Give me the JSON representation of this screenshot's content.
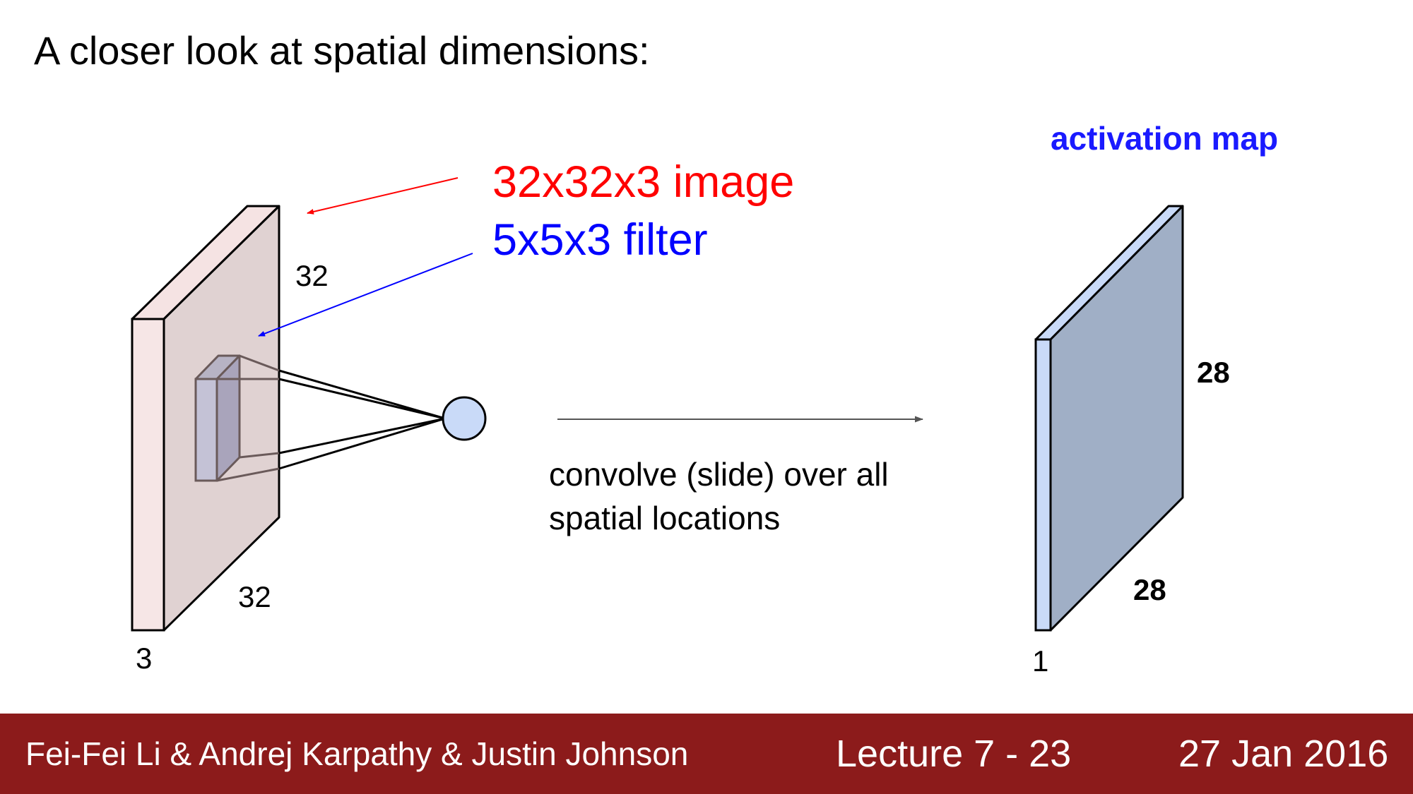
{
  "slide": {
    "title": "A closer look at spatial dimensions:"
  },
  "diagram": {
    "image_label": "32x32x3 image",
    "filter_label": "5x5x3 filter",
    "input_height_label": "32",
    "input_width_label": "32",
    "input_depth_label": "3",
    "convolve_line1": "convolve (slide) over all",
    "convolve_line2": "spatial locations",
    "activation_title": "activation map",
    "output_height_label": "28",
    "output_width_label": "28",
    "output_depth_label": "1"
  },
  "footer": {
    "authors": "Fei-Fei Li & Andrej Karpathy & Justin Johnson",
    "lecture": "Lecture 7 - 23",
    "date": "27 Jan 2016"
  },
  "colors": {
    "image_label": "#ff0000",
    "filter_label": "#0000ff",
    "activation_title": "#1a1aff",
    "footer_bg": "#8c1b1b",
    "input_volume": "#e0d2d2",
    "output_volume": "#a0afc6"
  }
}
